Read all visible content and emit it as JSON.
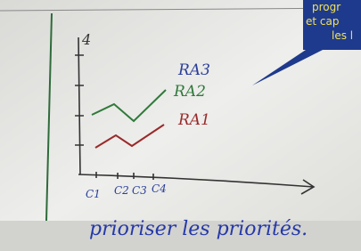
{
  "whiteboard": {
    "axis_max": "4",
    "labels": [
      "RA3",
      "RA2",
      "RA1"
    ],
    "categories": [
      "C1",
      "C2",
      "C3",
      "C4"
    ],
    "caption": "prioriser les priorités."
  },
  "bubble": {
    "lines": [
      "progr",
      "et cap",
      "les l"
    ]
  }
}
